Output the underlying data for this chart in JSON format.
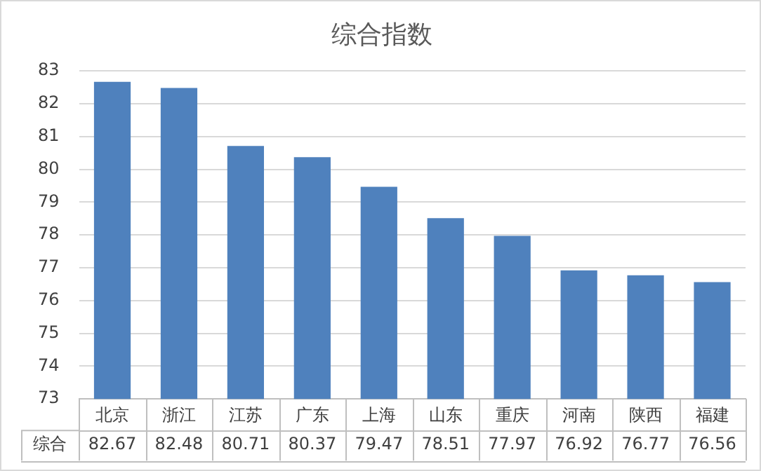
{
  "chart_data": {
    "type": "bar",
    "title": "综合指数",
    "categories": [
      "北京",
      "浙江",
      "江苏",
      "广东",
      "上海",
      "山东",
      "重庆",
      "河南",
      "陕西",
      "福建"
    ],
    "series": [
      {
        "name": "综合",
        "color": "#4f81bd",
        "values": [
          82.67,
          82.48,
          80.71,
          80.37,
          79.47,
          78.51,
          77.97,
          76.92,
          76.77,
          76.56
        ]
      }
    ],
    "ylim": [
      73,
      83
    ],
    "yticks": [
      73,
      74,
      75,
      76,
      77,
      78,
      79,
      80,
      81,
      82,
      83
    ],
    "grid": "y",
    "legend": false,
    "data_labels": true
  }
}
